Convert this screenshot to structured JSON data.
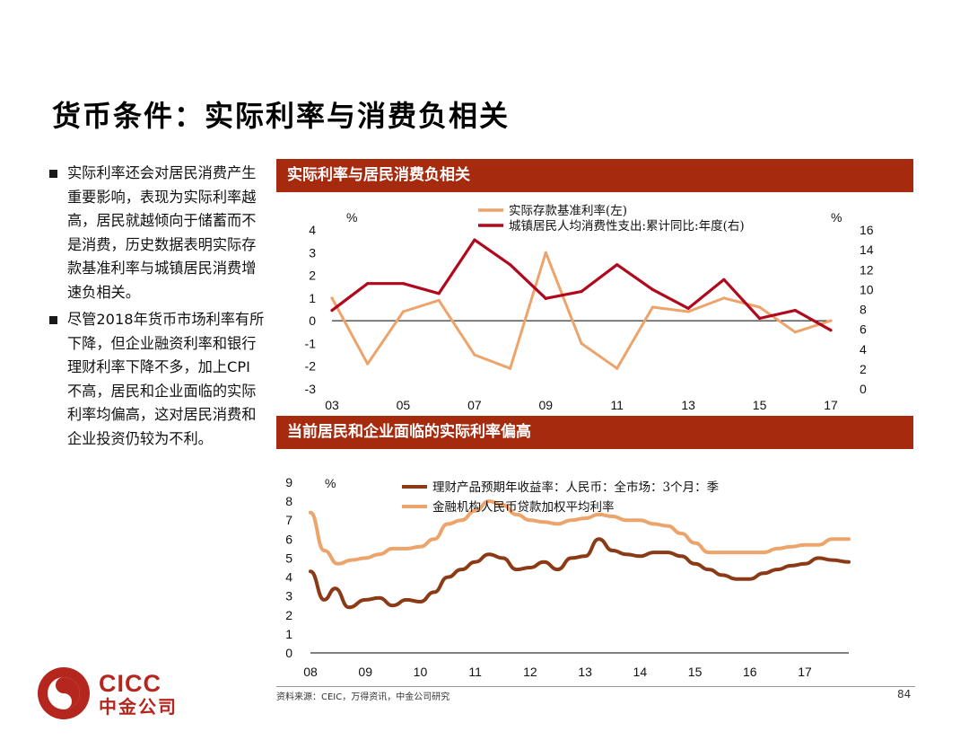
{
  "page_title": "货币条件：实际利率与消费负相关",
  "bullets": [
    "实际利率还会对居民消费产生重要影响，表现为实际利率越高，居民就越倾向于储蓄而不是消费，历史数据表明实际存款基准利率与城镇居民消费增速负相关。",
    "尽管2018年货币市场利率有所下降，但企业融资利率和银行理财利率下降不多，加上CPI不高，居民和企业面临的实际利率均偏高，这对居民消费和企业投资仍较为不利。"
  ],
  "colors": {
    "accent": "#a52a0e",
    "orange": "#eda46b",
    "red": "#b0091e",
    "brown": "#8b3a16"
  },
  "chart_data": [
    {
      "type": "line",
      "title": "实际利率与居民消费负相关",
      "x": [
        "03",
        "04",
        "05",
        "06",
        "07",
        "08",
        "09",
        "10",
        "11",
        "12",
        "13",
        "14",
        "15",
        "16",
        "17"
      ],
      "xticks": [
        "03",
        "05",
        "07",
        "09",
        "11",
        "13",
        "15",
        "17"
      ],
      "left_axis": {
        "label": "%",
        "ylim": [
          -3,
          4
        ],
        "ticks": [
          4,
          3,
          2,
          1,
          0,
          -1,
          -2,
          -3
        ]
      },
      "right_axis": {
        "label": "%",
        "ylim": [
          0,
          16
        ],
        "ticks": [
          16,
          14,
          12,
          10,
          8,
          6,
          4,
          2,
          0
        ]
      },
      "series": [
        {
          "name": "实际存款基准利率(左)",
          "axis": "left",
          "color": "#eda46b",
          "values": [
            1.0,
            -1.9,
            0.4,
            0.9,
            -1.5,
            -2.1,
            3.0,
            -1.0,
            -2.1,
            0.6,
            0.4,
            1.0,
            0.6,
            -0.5,
            0.0
          ]
        },
        {
          "name": "城镇居民人均消费性支出:累计同比:年度(右)",
          "axis": "right",
          "color": "#b0091e",
          "values": [
            7.9,
            10.6,
            10.6,
            9.6,
            15.0,
            12.5,
            9.1,
            9.8,
            12.5,
            10.0,
            8.1,
            11.0,
            7.1,
            7.9,
            5.9
          ]
        }
      ]
    },
    {
      "type": "line",
      "title": "当前居民和企业面临的实际利率偏高",
      "xticks": [
        "08",
        "09",
        "10",
        "11",
        "12",
        "13",
        "14",
        "15",
        "16",
        "17"
      ],
      "x_start": 2008.0,
      "x_end": 2017.8,
      "ylabel": "%",
      "ylim": [
        0,
        9
      ],
      "yticks": [
        9,
        8,
        7,
        6,
        5,
        4,
        3,
        2,
        1,
        0
      ],
      "series": [
        {
          "name": "理财产品预期年收益率：人民币：全市场：3个月：季",
          "color": "#8b3a16",
          "points": [
            [
              2008.0,
              4.3
            ],
            [
              2008.25,
              2.8
            ],
            [
              2008.45,
              3.4
            ],
            [
              2008.7,
              2.4
            ],
            [
              2009.0,
              2.8
            ],
            [
              2009.25,
              2.9
            ],
            [
              2009.5,
              2.5
            ],
            [
              2009.75,
              2.8
            ],
            [
              2010.0,
              2.7
            ],
            [
              2010.25,
              3.2
            ],
            [
              2010.5,
              4.0
            ],
            [
              2010.75,
              4.4
            ],
            [
              2011.0,
              4.8
            ],
            [
              2011.25,
              5.2
            ],
            [
              2011.5,
              5.0
            ],
            [
              2011.75,
              4.4
            ],
            [
              2012.0,
              4.5
            ],
            [
              2012.25,
              4.8
            ],
            [
              2012.5,
              4.4
            ],
            [
              2012.75,
              5.0
            ],
            [
              2013.0,
              5.1
            ],
            [
              2013.25,
              6.0
            ],
            [
              2013.5,
              5.4
            ],
            [
              2013.75,
              5.2
            ],
            [
              2014.0,
              5.1
            ],
            [
              2014.25,
              5.3
            ],
            [
              2014.5,
              5.3
            ],
            [
              2014.75,
              5.1
            ],
            [
              2015.0,
              4.7
            ],
            [
              2015.25,
              4.4
            ],
            [
              2015.5,
              4.1
            ],
            [
              2015.75,
              3.9
            ],
            [
              2016.0,
              3.9
            ],
            [
              2016.25,
              4.2
            ],
            [
              2016.5,
              4.4
            ],
            [
              2016.75,
              4.6
            ],
            [
              2017.0,
              4.7
            ],
            [
              2017.25,
              5.0
            ],
            [
              2017.5,
              4.9
            ],
            [
              2017.8,
              4.8
            ]
          ]
        },
        {
          "name": "金融机构人民币贷款加权平均利率",
          "color": "#eda46b",
          "points": [
            [
              2008.0,
              7.4
            ],
            [
              2008.25,
              5.4
            ],
            [
              2008.5,
              4.7
            ],
            [
              2008.75,
              4.9
            ],
            [
              2009.0,
              5.0
            ],
            [
              2009.25,
              5.2
            ],
            [
              2009.5,
              5.5
            ],
            [
              2009.75,
              5.5
            ],
            [
              2010.0,
              5.6
            ],
            [
              2010.25,
              6.0
            ],
            [
              2010.5,
              6.8
            ],
            [
              2010.75,
              7.0
            ],
            [
              2011.0,
              7.5
            ],
            [
              2011.25,
              8.0
            ],
            [
              2011.5,
              7.8
            ],
            [
              2011.75,
              7.3
            ],
            [
              2012.0,
              7.0
            ],
            [
              2012.25,
              6.9
            ],
            [
              2012.5,
              6.8
            ],
            [
              2012.75,
              7.0
            ],
            [
              2013.0,
              7.1
            ],
            [
              2013.25,
              7.3
            ],
            [
              2013.5,
              7.2
            ],
            [
              2013.75,
              7.0
            ],
            [
              2014.0,
              7.0
            ],
            [
              2014.25,
              6.8
            ],
            [
              2014.5,
              6.7
            ],
            [
              2014.75,
              6.3
            ],
            [
              2015.0,
              5.8
            ],
            [
              2015.25,
              5.3
            ],
            [
              2015.5,
              5.3
            ],
            [
              2015.75,
              5.3
            ],
            [
              2016.0,
              5.3
            ],
            [
              2016.25,
              5.3
            ],
            [
              2016.5,
              5.5
            ],
            [
              2016.75,
              5.6
            ],
            [
              2017.0,
              5.7
            ],
            [
              2017.25,
              5.7
            ],
            [
              2017.5,
              6.0
            ],
            [
              2017.8,
              6.0
            ]
          ]
        }
      ]
    }
  ],
  "source_note": "资料来源：CEIC，万得资讯，中金公司研究",
  "page_number": "84",
  "logo": {
    "en": "CICC",
    "cn": "中金公司"
  }
}
